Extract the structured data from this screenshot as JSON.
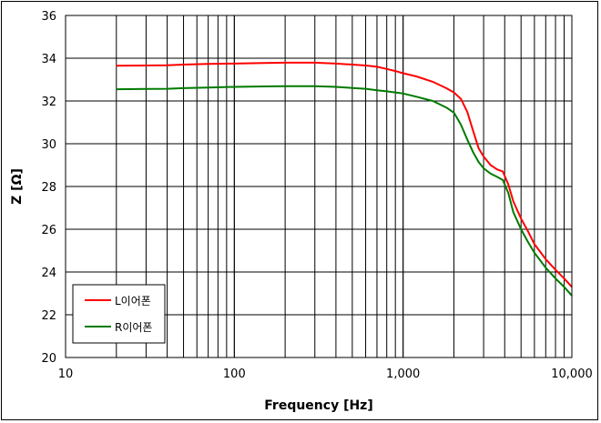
{
  "chart_data": {
    "type": "line",
    "xlabel": "Frequency [Hz]",
    "ylabel": "Z [Ω]",
    "x_scale": "log",
    "xlim": [
      10,
      10000
    ],
    "ylim": [
      20,
      36
    ],
    "x_ticks": [
      10,
      100,
      1000,
      10000
    ],
    "x_tick_labels": [
      "10",
      "100",
      "1,000",
      "10,000"
    ],
    "y_ticks": [
      20,
      22,
      24,
      26,
      28,
      30,
      32,
      34,
      36
    ],
    "y_tick_labels": [
      "20",
      "22",
      "24",
      "26",
      "28",
      "30",
      "32",
      "34",
      "36"
    ],
    "grid": true,
    "legend_position": "bottom-left",
    "series": [
      {
        "name": "L이어폰",
        "color": "#ff0000",
        "points": [
          [
            20,
            33.65
          ],
          [
            30,
            33.66
          ],
          [
            40,
            33.67
          ],
          [
            50,
            33.7
          ],
          [
            70,
            33.73
          ],
          [
            100,
            33.75
          ],
          [
            150,
            33.78
          ],
          [
            200,
            33.79
          ],
          [
            300,
            33.79
          ],
          [
            400,
            33.75
          ],
          [
            500,
            33.7
          ],
          [
            600,
            33.66
          ],
          [
            700,
            33.6
          ],
          [
            800,
            33.5
          ],
          [
            900,
            33.4
          ],
          [
            1000,
            33.3
          ],
          [
            1200,
            33.15
          ],
          [
            1500,
            32.9
          ],
          [
            1800,
            32.6
          ],
          [
            2000,
            32.4
          ],
          [
            2200,
            32.1
          ],
          [
            2400,
            31.5
          ],
          [
            2600,
            30.6
          ],
          [
            2800,
            29.8
          ],
          [
            3000,
            29.4
          ],
          [
            3300,
            29.0
          ],
          [
            3600,
            28.8
          ],
          [
            3900,
            28.7
          ],
          [
            4200,
            28.1
          ],
          [
            4500,
            27.3
          ],
          [
            5000,
            26.5
          ],
          [
            5500,
            25.9
          ],
          [
            6000,
            25.3
          ],
          [
            7000,
            24.6
          ],
          [
            8000,
            24.1
          ],
          [
            9000,
            23.7
          ],
          [
            10000,
            23.3
          ]
        ]
      },
      {
        "name": "R이어폰",
        "color": "#007a00",
        "points": [
          [
            20,
            32.55
          ],
          [
            30,
            32.56
          ],
          [
            40,
            32.57
          ],
          [
            50,
            32.6
          ],
          [
            70,
            32.63
          ],
          [
            100,
            32.66
          ],
          [
            150,
            32.68
          ],
          [
            200,
            32.69
          ],
          [
            300,
            32.69
          ],
          [
            400,
            32.66
          ],
          [
            500,
            32.61
          ],
          [
            600,
            32.57
          ],
          [
            700,
            32.5
          ],
          [
            800,
            32.45
          ],
          [
            900,
            32.4
          ],
          [
            1000,
            32.35
          ],
          [
            1200,
            32.2
          ],
          [
            1500,
            32.0
          ],
          [
            1800,
            31.7
          ],
          [
            2000,
            31.45
          ],
          [
            2200,
            30.9
          ],
          [
            2400,
            30.2
          ],
          [
            2600,
            29.6
          ],
          [
            2800,
            29.15
          ],
          [
            3000,
            28.85
          ],
          [
            3300,
            28.6
          ],
          [
            3600,
            28.45
          ],
          [
            3900,
            28.3
          ],
          [
            4200,
            27.7
          ],
          [
            4500,
            26.8
          ],
          [
            5000,
            26.0
          ],
          [
            5500,
            25.4
          ],
          [
            6000,
            24.9
          ],
          [
            7000,
            24.2
          ],
          [
            8000,
            23.7
          ],
          [
            9000,
            23.3
          ],
          [
            10000,
            22.9
          ]
        ]
      }
    ]
  }
}
